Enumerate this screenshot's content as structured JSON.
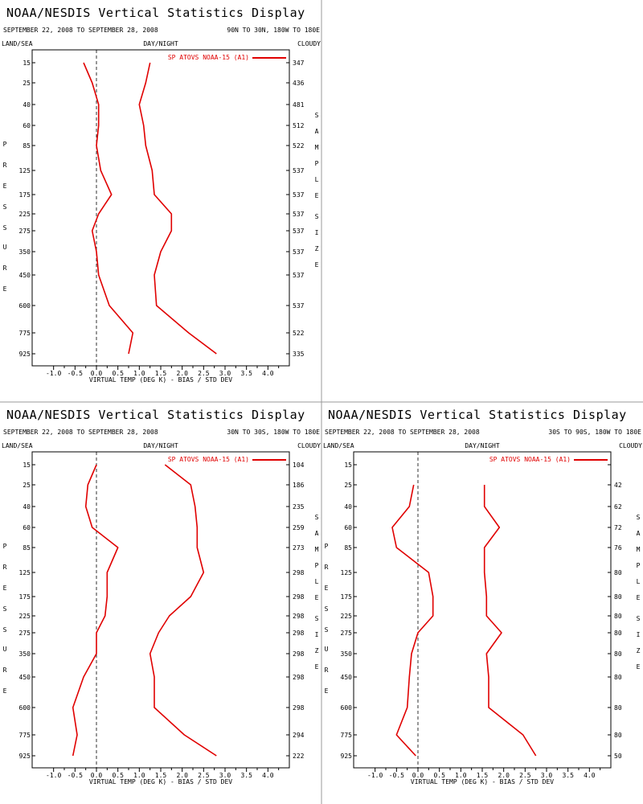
{
  "panels": [
    {
      "title": "NOAA/NESDIS Vertical Statistics Display",
      "date_range": "SEPTEMBER 22, 2008 TO SEPTEMBER 28, 2008",
      "region": "90N TO 30N, 180W TO 180E",
      "land_sea": "LAND/SEA",
      "day_night": "DAY/NIGHT",
      "cloudy": "CLOUDY",
      "left_axis_label": [
        "P",
        "R",
        "E",
        "S",
        "S",
        "U",
        "R",
        "E"
      ],
      "right_axis_label": [
        "S",
        "A",
        "M",
        "P",
        "L",
        "E",
        "",
        "S",
        "I",
        "Z",
        "E"
      ],
      "xlabel": "VIRTUAL TEMP (DEG K) - BIAS / STD DEV",
      "chart_data": {
        "type": "line",
        "legend": "SP ATOVS NOAA-15 (A1)",
        "legend_color": "#e00000",
        "xlim": [
          -1.5,
          4.5
        ],
        "xticks": [
          "-1.0",
          "-0.5",
          "0.0",
          "0.5",
          "1.0",
          "1.5",
          "2.0",
          "2.5",
          "3.0",
          "3.5",
          "4.0"
        ],
        "pressure_levels": [
          "15",
          "25",
          "40",
          "60",
          "85",
          "125",
          "175",
          "225",
          "275",
          "350",
          "450",
          "600",
          "775",
          "925"
        ],
        "sample_size": [
          "347",
          "436",
          "481",
          "512",
          "522",
          "537",
          "537",
          "537",
          "537",
          "537",
          "537",
          "537",
          "522",
          "335"
        ],
        "bias": [
          -0.3,
          -0.1,
          0.05,
          0.05,
          0.0,
          0.1,
          0.35,
          0.05,
          -0.1,
          0.0,
          0.05,
          0.3,
          0.85,
          0.75
        ],
        "std_dev": [
          1.25,
          1.15,
          1.0,
          1.1,
          1.15,
          1.3,
          1.35,
          1.75,
          1.75,
          1.5,
          1.35,
          1.4,
          2.15,
          2.8
        ],
        "zero_line": "dashed"
      }
    },
    {
      "title": "NOAA/NESDIS Vertical Statistics Display",
      "date_range": "SEPTEMBER 22, 2008 TO SEPTEMBER 28, 2008",
      "region": "30N TO 30S, 180W TO 180E",
      "land_sea": "LAND/SEA",
      "day_night": "DAY/NIGHT",
      "cloudy": "CLOUDY",
      "left_axis_label": [
        "P",
        "R",
        "E",
        "S",
        "S",
        "U",
        "R",
        "E"
      ],
      "right_axis_label": [
        "S",
        "A",
        "M",
        "P",
        "L",
        "E",
        "",
        "S",
        "I",
        "Z",
        "E"
      ],
      "xlabel": "VIRTUAL TEMP (DEG K) - BIAS / STD DEV",
      "chart_data": {
        "type": "line",
        "legend": "SP ATOVS NOAA-15 (A1)",
        "legend_color": "#e00000",
        "xlim": [
          -1.5,
          4.5
        ],
        "xticks": [
          "-1.0",
          "-0.5",
          "0.0",
          "0.5",
          "1.0",
          "1.5",
          "2.0",
          "2.5",
          "3.0",
          "3.5",
          "4.0"
        ],
        "pressure_levels": [
          "15",
          "25",
          "40",
          "60",
          "85",
          "125",
          "175",
          "225",
          "275",
          "350",
          "450",
          "600",
          "775",
          "925"
        ],
        "sample_size": [
          "104",
          "186",
          "235",
          "259",
          "273",
          "298",
          "298",
          "298",
          "298",
          "298",
          "298",
          "298",
          "294",
          "222"
        ],
        "bias": [
          0.0,
          -0.2,
          -0.25,
          -0.1,
          0.5,
          0.25,
          0.25,
          0.2,
          0.0,
          0.0,
          -0.3,
          -0.55,
          -0.45,
          -0.55
        ],
        "std_dev": [
          1.6,
          2.2,
          2.3,
          2.35,
          2.35,
          2.5,
          2.2,
          1.7,
          1.45,
          1.25,
          1.35,
          1.35,
          2.05,
          2.8
        ],
        "zero_line": "dashed"
      }
    },
    {
      "title": "NOAA/NESDIS Vertical Statistics Display",
      "date_range": "SEPTEMBER 22, 2008 TO SEPTEMBER 28, 2008",
      "region": "30S TO 90S, 180W TO 180E",
      "land_sea": "LAND/SEA",
      "day_night": "DAY/NIGHT",
      "cloudy": "CLOUDY",
      "left_axis_label": [
        "P",
        "R",
        "E",
        "S",
        "S",
        "U",
        "R",
        "E"
      ],
      "right_axis_label": [
        "S",
        "A",
        "M",
        "P",
        "L",
        "E",
        "",
        "S",
        "I",
        "Z",
        "E"
      ],
      "xlabel": "VIRTUAL TEMP (DEG K) - BIAS / STD DEV",
      "chart_data": {
        "type": "line",
        "legend": "SP ATOVS NOAA-15 (A1)",
        "legend_color": "#e00000",
        "xlim": [
          -1.5,
          4.5
        ],
        "xticks": [
          "-1.0",
          "-0.5",
          "0.0",
          "0.5",
          "1.0",
          "1.5",
          "2.0",
          "2.5",
          "3.0",
          "3.5",
          "4.0"
        ],
        "pressure_levels": [
          "15",
          "25",
          "40",
          "60",
          "85",
          "125",
          "175",
          "225",
          "275",
          "350",
          "450",
          "600",
          "775",
          "925"
        ],
        "sample_size": [
          "",
          "42",
          "62",
          "72",
          "76",
          "80",
          "80",
          "80",
          "80",
          "80",
          "80",
          "80",
          "80",
          "50"
        ],
        "bias": [
          null,
          -0.1,
          -0.2,
          -0.6,
          -0.5,
          0.25,
          0.35,
          0.35,
          0.0,
          -0.15,
          -0.2,
          -0.25,
          -0.5,
          -0.05
        ],
        "std_dev": [
          null,
          1.55,
          1.55,
          1.9,
          1.55,
          1.55,
          1.6,
          1.6,
          1.95,
          1.6,
          1.65,
          1.65,
          2.45,
          2.75
        ],
        "zero_line": "dashed"
      }
    }
  ]
}
